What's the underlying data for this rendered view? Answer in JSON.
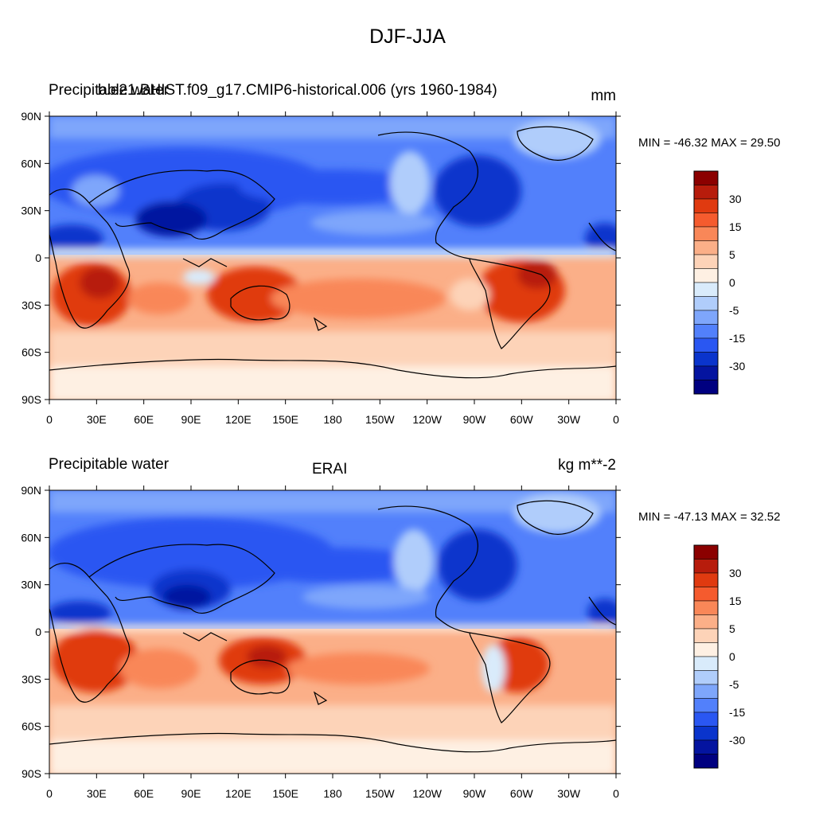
{
  "title": "DJF-JJA",
  "panels": [
    {
      "left_title": "Precipitable water",
      "center_title": "b.e21.BHIST.f09_g17.CMIP6-historical.006 (yrs 1960-1984)",
      "units": "mm",
      "min_max": "MIN = -46.32 MAX =  29.50"
    },
    {
      "left_title": "Precipitable water",
      "center_title": "ERAI",
      "units": "kg m**-2",
      "min_max": "MIN = -47.13 MAX =  32.52"
    }
  ],
  "lat_labels": [
    "90N",
    "60N",
    "30N",
    "0",
    "30S",
    "60S",
    "90S"
  ],
  "lon_labels": [
    "0",
    "30E",
    "60E",
    "90E",
    "120E",
    "150E",
    "180",
    "150W",
    "120W",
    "90W",
    "60W",
    "30W",
    "0"
  ],
  "colorbar": {
    "labels": [
      "30",
      "15",
      "5",
      "0",
      "-5",
      "-15",
      "-30"
    ],
    "colors": [
      "#8b0000",
      "#b71c0c",
      "#e03a10",
      "#f55b2e",
      "#f98758",
      "#fbaf88",
      "#fdd3b8",
      "#fef0e3",
      "#d9ebfb",
      "#b0cdfb",
      "#7ea6fb",
      "#5280fb",
      "#2a57f2",
      "#0a34cc",
      "#0414a0",
      "#000080"
    ]
  },
  "colors": {
    "land_outline": "#000000",
    "strong_positive": "#e03a10",
    "strong_negative": "#0a34cc"
  }
}
